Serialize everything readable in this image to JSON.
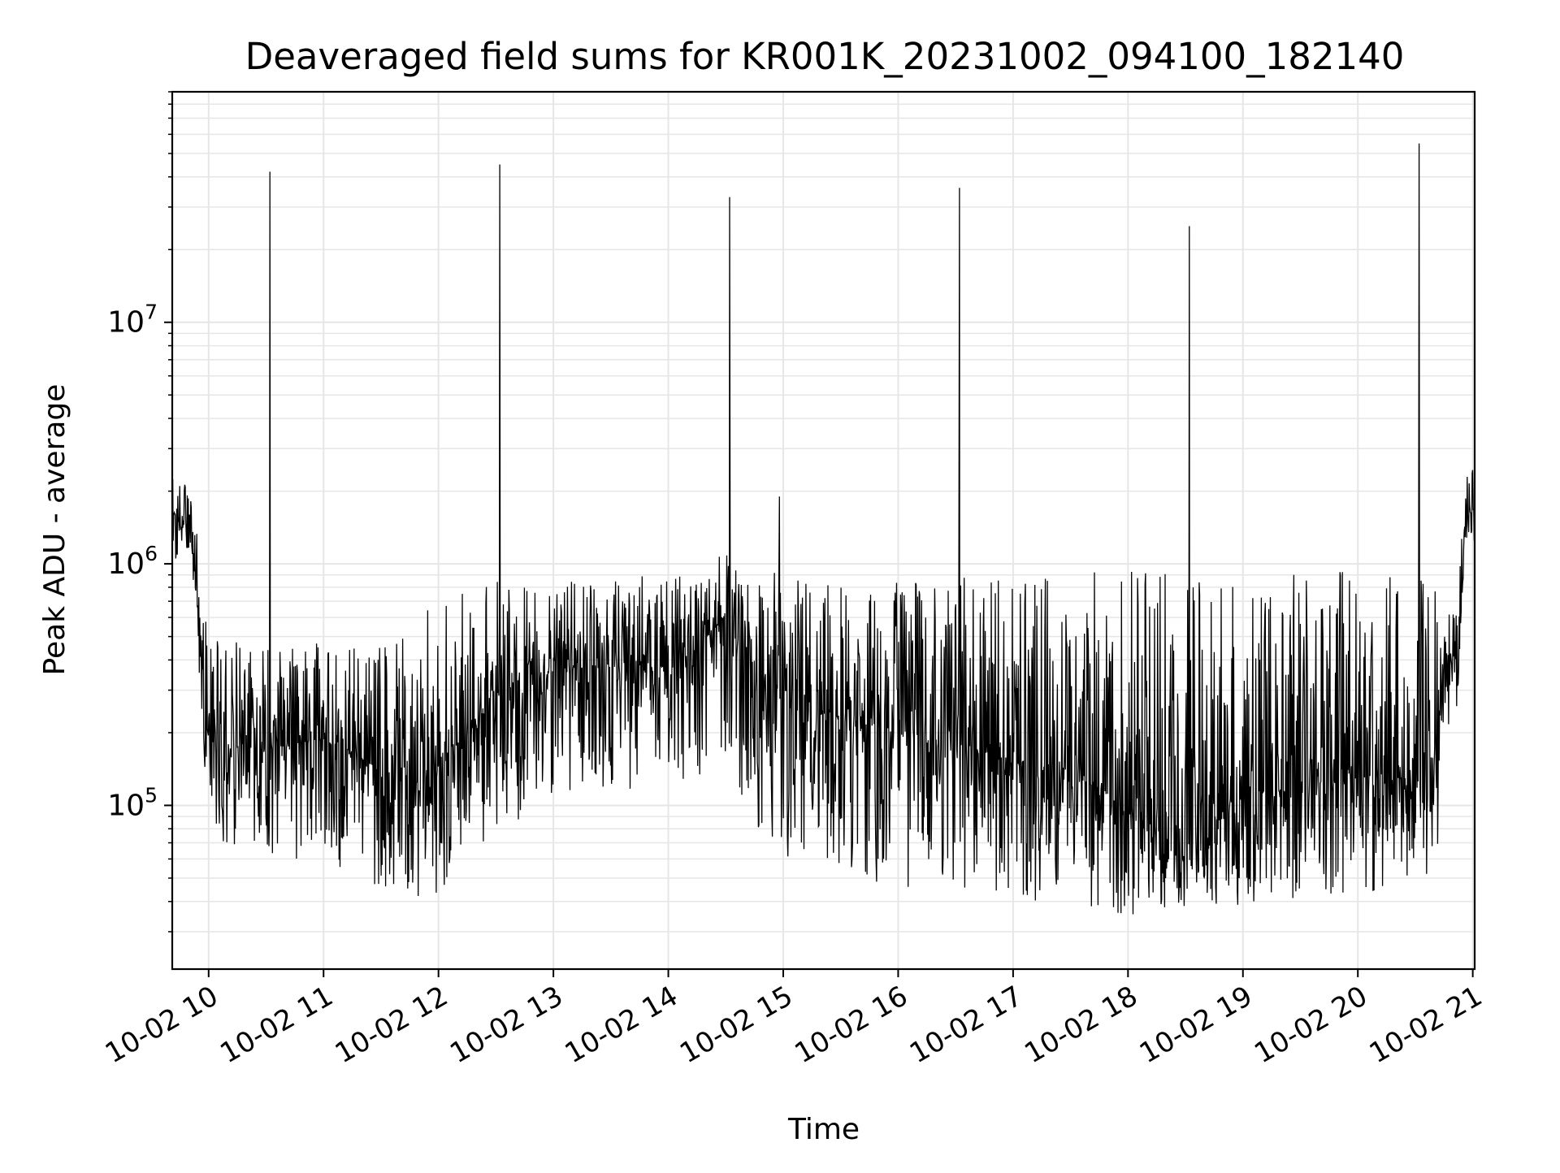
{
  "chart_data": {
    "type": "line",
    "title": "Deaveraged field sums for KR001K_20231002_094100_182140",
    "xlabel": "Time",
    "ylabel": "Peak ADU - average",
    "x_tick_labels": [
      "10-02 10",
      "10-02 11",
      "10-02 12",
      "10-02 13",
      "10-02 14",
      "10-02 15",
      "10-02 16",
      "10-02 17",
      "10-02 18",
      "10-02 19",
      "10-02 20",
      "10-02 21"
    ],
    "x_tick_hours": [
      10,
      11,
      12,
      13,
      14,
      15,
      16,
      17,
      18,
      19,
      20,
      21
    ],
    "y_tick_labels": [
      {
        "base": "10",
        "exp": "5",
        "value": 100000
      },
      {
        "base": "10",
        "exp": "6",
        "value": 1000000
      },
      {
        "base": "10",
        "exp": "7",
        "value": 10000000
      }
    ],
    "xlim": [
      "2023-10-02 09:41:00",
      "2023-10-02 21:01:00"
    ],
    "ylim": [
      21000,
      90000000
    ],
    "yscale": "log",
    "grid": true,
    "line_color": "#000000",
    "grid_color": "#e6e6e6",
    "spikes": [
      {
        "time": "2023-10-02 10:32",
        "value": 42000000
      },
      {
        "time": "2023-10-02 12:32",
        "value": 45000000
      },
      {
        "time": "2023-10-02 14:32",
        "value": 33000000
      },
      {
        "time": "2023-10-02 14:58",
        "value": 1900000
      },
      {
        "time": "2023-10-02 16:32",
        "value": 36000000
      },
      {
        "time": "2023-10-02 18:32",
        "value": 25000000
      },
      {
        "time": "2023-10-02 20:32",
        "value": 55000000
      }
    ],
    "series": [
      {
        "x": [
          "09:41",
          "09:50",
          "09:54",
          "10:00",
          "10:30",
          "11:00",
          "11:30",
          "12:00",
          "12:30",
          "13:00",
          "13:30",
          "14:00",
          "14:30",
          "15:00",
          "15:30",
          "16:00",
          "16:30",
          "17:00",
          "17:30",
          "18:00",
          "18:30",
          "19:00",
          "19:30",
          "20:00",
          "20:30",
          "20:40",
          "20:45",
          "20:52",
          "20:56",
          "21:01"
        ],
        "y": [
          1600000,
          1500000,
          700000,
          180000,
          170000,
          190000,
          140000,
          140000,
          300000,
          360000,
          380000,
          350000,
          600000,
          260000,
          230000,
          200000,
          170000,
          150000,
          140000,
          100000,
          70000,
          110000,
          120000,
          130000,
          130000,
          110000,
          400000,
          420000,
          1600000,
          1700000
        ],
        "band_low": [
          1000000,
          1000000,
          350000,
          70000,
          60000,
          60000,
          45000,
          40000,
          80000,
          100000,
          120000,
          110000,
          150000,
          50000,
          50000,
          45000,
          45000,
          40000,
          40000,
          35000,
          35000,
          38000,
          38000,
          40000,
          45000,
          35000,
          200000,
          250000,
          1200000,
          1200000
        ],
        "band_high": [
          2500000,
          2300000,
          1400000,
          500000,
          450000,
          500000,
          450000,
          700000,
          850000,
          850000,
          900000,
          900000,
          1100000,
          900000,
          900000,
          900000,
          900000,
          900000,
          1000000,
          1000000,
          900000,
          900000,
          950000,
          950000,
          900000,
          800000,
          700000,
          900000,
          2200000,
          3000000
        ]
      }
    ]
  }
}
